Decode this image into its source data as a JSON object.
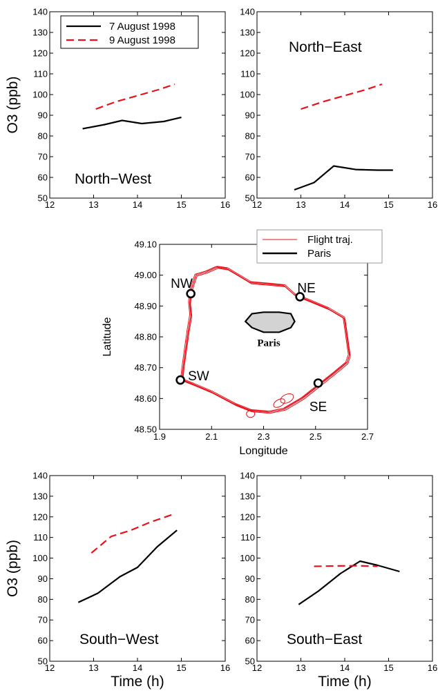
{
  "style": {
    "color_7aug": "#000000",
    "color_9aug": "#e8111b",
    "track_color": "#e8111b",
    "paris_fill": "#d3d3d3"
  },
  "o3_panels": [
    {
      "id": "north-west",
      "region_label": "North−West",
      "show_legend": true,
      "ylabel": "O3 (ppb)",
      "xlabel": "",
      "xlim": [
        12,
        16
      ],
      "ylim": [
        50,
        140
      ],
      "xticks": [
        12,
        13,
        14,
        15,
        16
      ],
      "yticks": [
        50,
        60,
        70,
        80,
        90,
        100,
        110,
        120,
        130,
        140
      ],
      "series": [
        {
          "name": "7 August 1998",
          "style": "solid",
          "x": [
            12.75,
            13.25,
            13.65,
            14.1,
            14.6,
            15.0
          ],
          "y": [
            83.5,
            85.5,
            87.5,
            86,
            87,
            89
          ]
        },
        {
          "name": "9 August 1998",
          "style": "dashed",
          "x": [
            13.05,
            13.5,
            14.0,
            14.5,
            14.85
          ],
          "y": [
            93,
            96.5,
            99.5,
            102.5,
            105
          ]
        }
      ]
    },
    {
      "id": "north-east",
      "region_label": "North−East",
      "show_legend": false,
      "ylabel": "",
      "xlabel": "",
      "xlim": [
        12,
        16
      ],
      "ylim": [
        50,
        140
      ],
      "xticks": [
        12,
        13,
        14,
        15,
        16
      ],
      "yticks": [
        50,
        60,
        70,
        80,
        90,
        100,
        110,
        120,
        130,
        140
      ],
      "series": [
        {
          "name": "7 August 1998",
          "style": "solid",
          "x": [
            12.85,
            13.3,
            13.75,
            14.25,
            14.75,
            15.1
          ],
          "y": [
            54,
            57.5,
            65.5,
            63.8,
            63.5,
            63.5
          ]
        },
        {
          "name": "9 August 1998",
          "style": "dashed",
          "x": [
            13.0,
            13.5,
            14.0,
            14.5,
            14.85
          ],
          "y": [
            93,
            96.5,
            99.5,
            102.5,
            105
          ]
        }
      ]
    },
    {
      "id": "south-west",
      "region_label": "South−West",
      "show_legend": false,
      "ylabel": "O3 (ppb)",
      "xlabel": "Time (h)",
      "xlim": [
        12,
        16
      ],
      "ylim": [
        50,
        140
      ],
      "xticks": [
        12,
        13,
        14,
        15,
        16
      ],
      "yticks": [
        50,
        60,
        70,
        80,
        90,
        100,
        110,
        120,
        130,
        140
      ],
      "series": [
        {
          "name": "7 August 1998",
          "style": "solid",
          "x": [
            12.65,
            13.1,
            13.6,
            14.0,
            14.45,
            14.9
          ],
          "y": [
            78.5,
            83,
            91,
            95.5,
            105.5,
            113.5
          ]
        },
        {
          "name": "9 August 1998",
          "style": "dashed",
          "x": [
            12.95,
            13.4,
            13.85,
            14.3,
            14.85
          ],
          "y": [
            102.5,
            110.5,
            113.5,
            117.5,
            121.5
          ]
        }
      ]
    },
    {
      "id": "south-east",
      "region_label": "South−East",
      "show_legend": false,
      "ylabel": "",
      "xlabel": "Time (h)",
      "xlim": [
        12,
        16
      ],
      "ylim": [
        50,
        140
      ],
      "xticks": [
        12,
        13,
        14,
        15,
        16
      ],
      "yticks": [
        50,
        60,
        70,
        80,
        90,
        100,
        110,
        120,
        130,
        140
      ],
      "series": [
        {
          "name": "7 August 1998",
          "style": "solid",
          "x": [
            12.95,
            13.4,
            13.9,
            14.35,
            14.75,
            15.25
          ],
          "y": [
            77.5,
            84,
            92.5,
            98.5,
            96.5,
            93.5
          ]
        },
        {
          "name": "9 August 1998",
          "style": "dashed",
          "x": [
            13.3,
            13.8,
            14.3,
            14.75
          ],
          "y": [
            96,
            96.2,
            96.3,
            96
          ]
        }
      ]
    }
  ],
  "map": {
    "xlabel": "Longitude",
    "ylabel": "Latitude",
    "xlim": [
      1.9,
      2.7
    ],
    "ylim": [
      48.5,
      49.1
    ],
    "xticks": [
      1.9,
      2.1,
      2.3,
      2.5,
      2.7
    ],
    "xtick_labels": [
      "1.9",
      "2.1",
      "2.3",
      "2.5",
      "2.7"
    ],
    "yticks": [
      48.5,
      48.6,
      48.7,
      48.8,
      48.9,
      49.0,
      49.1
    ],
    "ytick_labels": [
      "48.50",
      "48.60",
      "48.70",
      "48.80",
      "48.90",
      "49.00",
      "49.10"
    ],
    "legend": [
      {
        "label": "Flight traj.",
        "style": "thin-red"
      },
      {
        "label": "Paris",
        "style": "thick-black"
      }
    ],
    "city_label": "Paris",
    "track": [
      [
        2.02,
        48.95
      ],
      [
        2.04,
        49.0
      ],
      [
        2.08,
        49.01
      ],
      [
        2.12,
        49.025
      ],
      [
        2.16,
        49.02
      ],
      [
        2.2,
        49.0
      ],
      [
        2.25,
        48.975
      ],
      [
        2.32,
        48.97
      ],
      [
        2.38,
        48.965
      ],
      [
        2.42,
        48.935
      ],
      [
        2.48,
        48.915
      ],
      [
        2.55,
        48.89
      ],
      [
        2.61,
        48.86
      ],
      [
        2.62,
        48.8
      ],
      [
        2.63,
        48.74
      ],
      [
        2.62,
        48.715
      ],
      [
        2.57,
        48.68
      ],
      [
        2.51,
        48.64
      ],
      [
        2.45,
        48.6
      ],
      [
        2.38,
        48.565
      ],
      [
        2.32,
        48.555
      ],
      [
        2.25,
        48.56
      ],
      [
        2.19,
        48.58
      ],
      [
        2.1,
        48.62
      ],
      [
        2.03,
        48.645
      ],
      [
        1.985,
        48.66
      ],
      [
        1.99,
        48.7
      ],
      [
        2.0,
        48.76
      ],
      [
        2.01,
        48.82
      ],
      [
        2.02,
        48.87
      ],
      [
        2.015,
        48.91
      ],
      [
        2.02,
        48.95
      ]
    ],
    "paris_outline": [
      [
        2.23,
        48.85
      ],
      [
        2.255,
        48.875
      ],
      [
        2.3,
        48.88
      ],
      [
        2.36,
        48.88
      ],
      [
        2.405,
        48.875
      ],
      [
        2.42,
        48.85
      ],
      [
        2.405,
        48.83
      ],
      [
        2.36,
        48.815
      ],
      [
        2.3,
        48.815
      ],
      [
        2.255,
        48.83
      ],
      [
        2.23,
        48.85
      ]
    ],
    "sites": [
      {
        "label": "NW",
        "lon": 2.02,
        "lat": 48.94,
        "label_lon": 1.985,
        "label_lat": 48.975
      },
      {
        "label": "NE",
        "lon": 2.44,
        "lat": 48.93,
        "label_lon": 2.465,
        "label_lat": 48.96
      },
      {
        "label": "SW",
        "lon": 1.98,
        "lat": 48.66,
        "label_lon": 2.05,
        "label_lat": 48.675
      },
      {
        "label": "SE",
        "lon": 2.51,
        "lat": 48.65,
        "label_lon": 2.51,
        "label_lat": 48.575
      }
    ]
  }
}
